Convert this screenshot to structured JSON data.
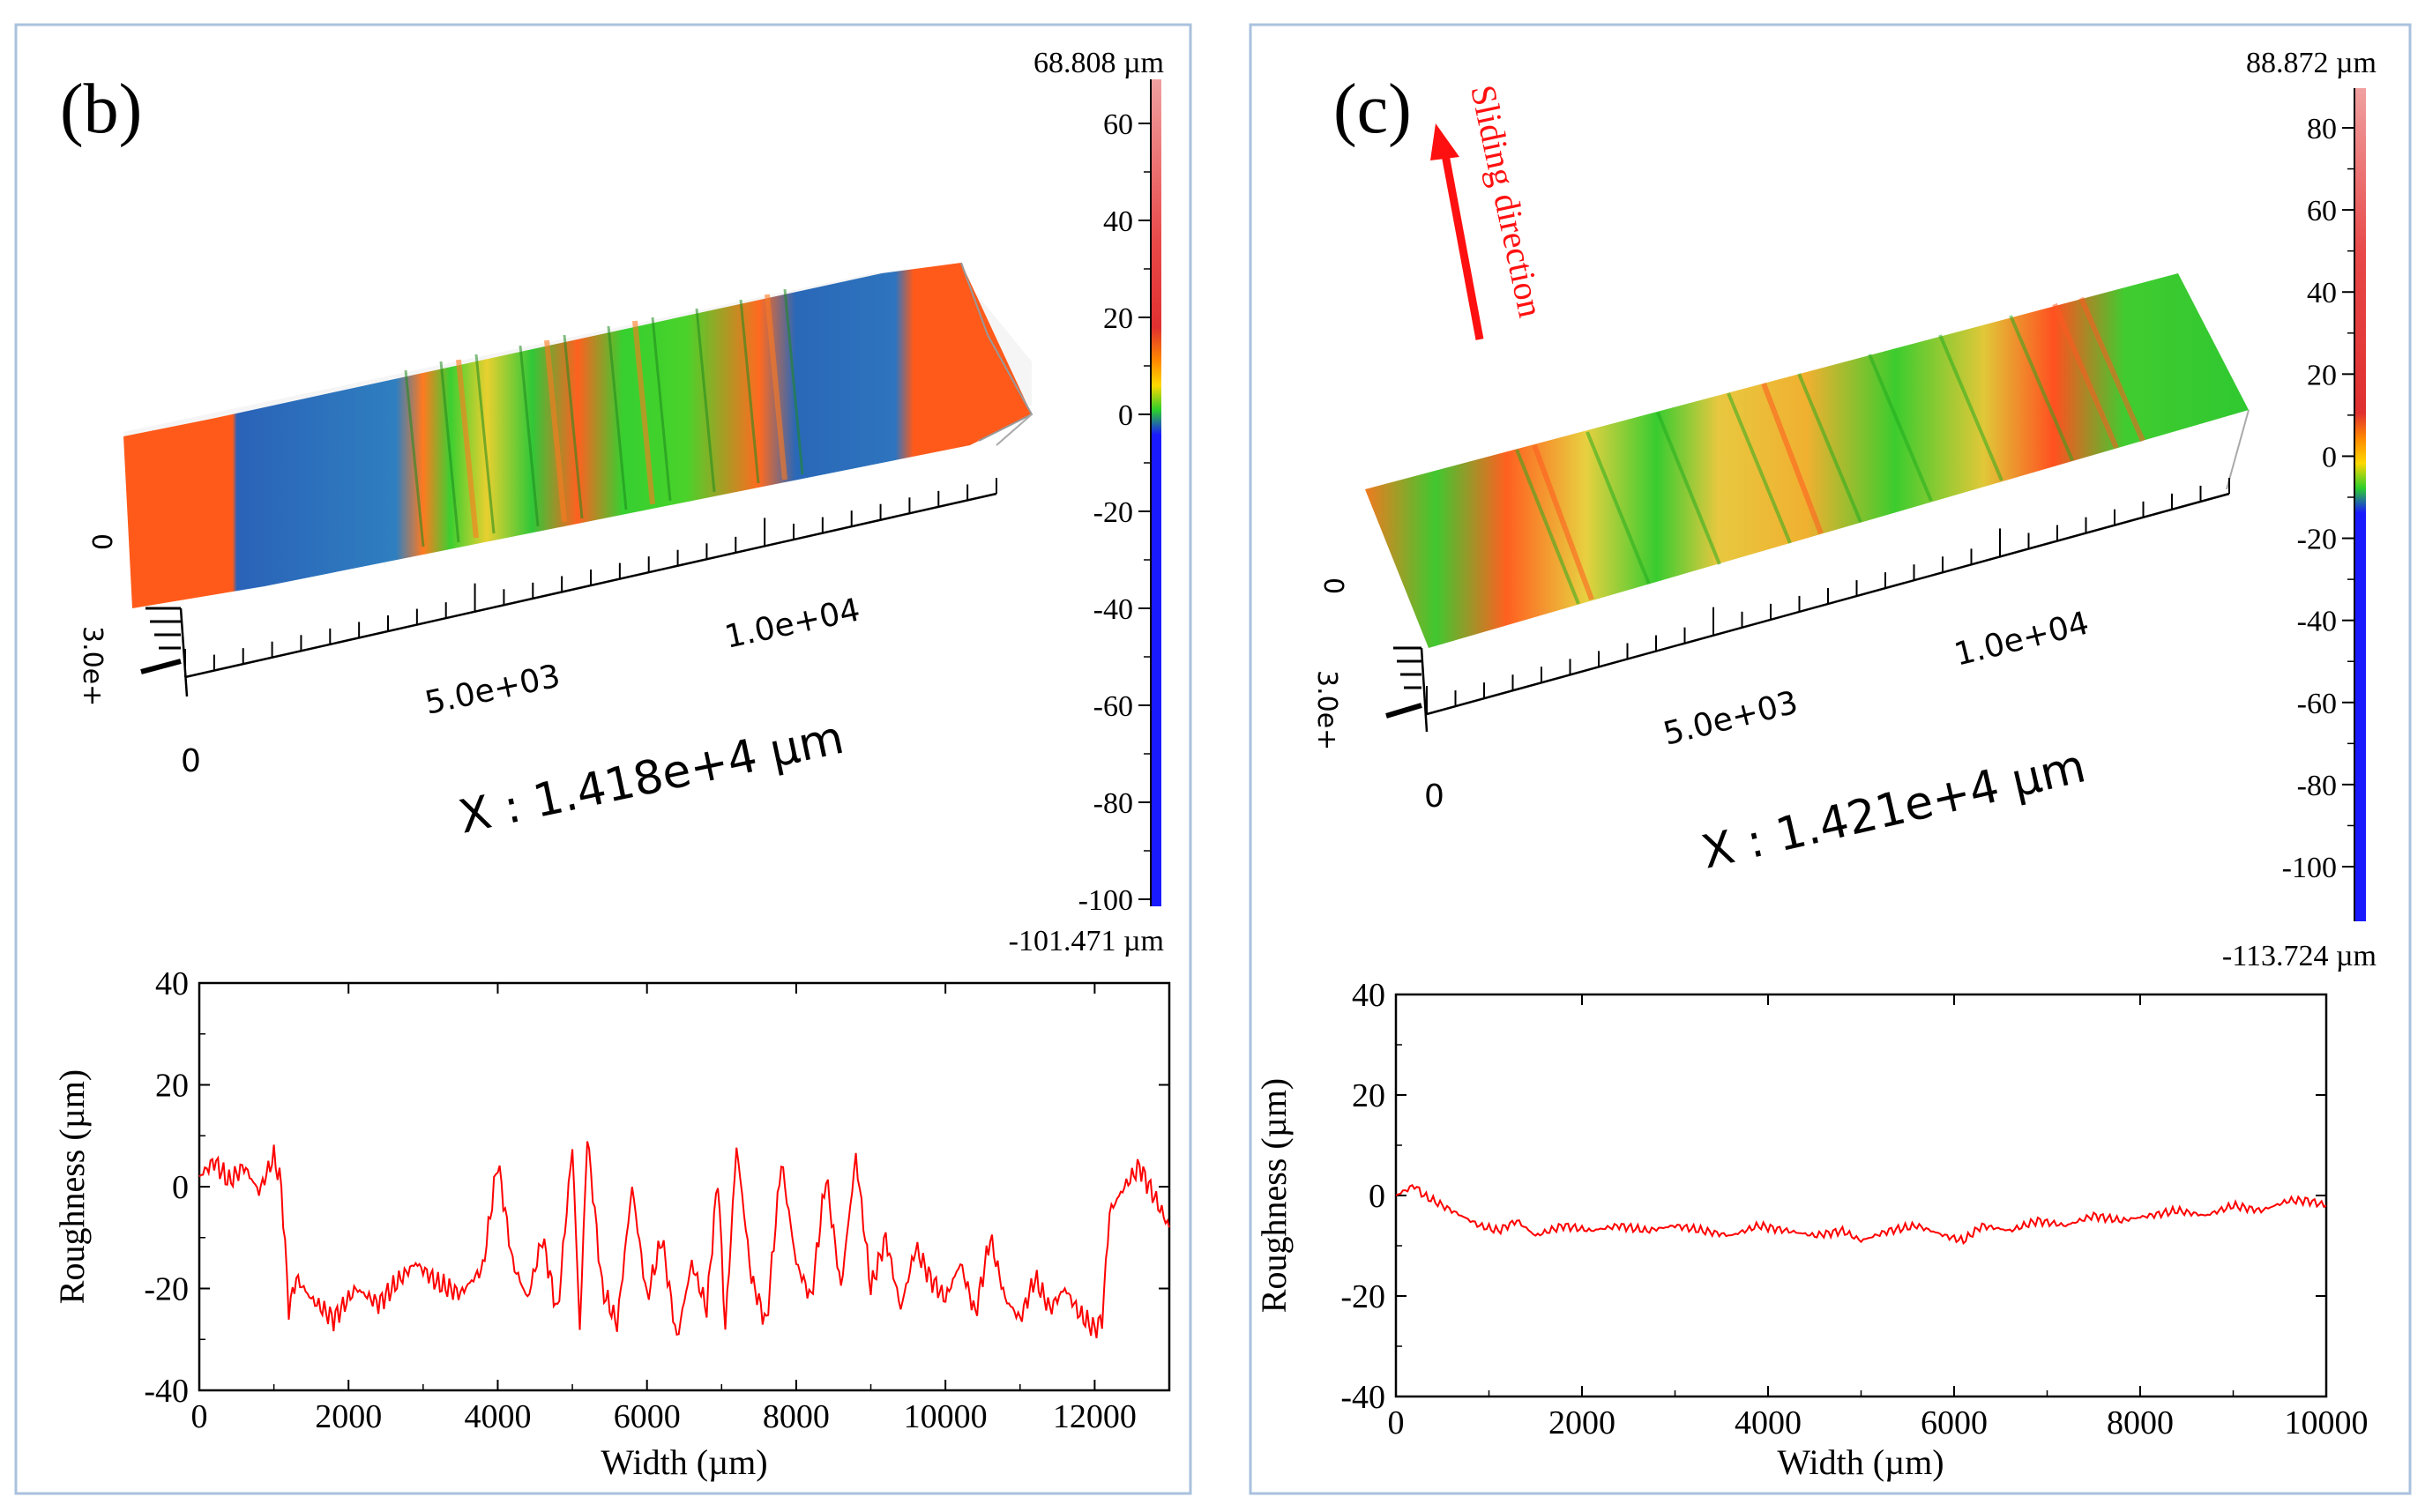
{
  "colors": {
    "frame": "#a9c1de",
    "profile_line": "#ff0000",
    "arrow": "#ff1010",
    "axis": "#000000",
    "surface_red": "#ff4a1a",
    "surface_green": "#2bd52b",
    "surface_blue": "#1f5fb8",
    "surface_yellow": "#f2d03a"
  },
  "panels": [
    {
      "label": "(b)",
      "view3d": {
        "colorbar_max_label": "68.808 µm",
        "colorbar_min_label": "-101.471 µm",
        "colorbar_ticks": [
          "60",
          "40",
          "20",
          "0",
          "-20",
          "-40",
          "-60",
          "-80",
          "-100"
        ],
        "x_axis_label": "X : 1.418e+4 µm",
        "x_tick_0": "0",
        "x_tick_mid": "5.0e+03",
        "x_tick_far": "1.0e+04",
        "y_tick_0": "0",
        "y_tick_3": "3.0e+"
      }
    },
    {
      "label": "(c)",
      "annotation": "Sliding direction",
      "view3d": {
        "colorbar_max_label": "88.872 µm",
        "colorbar_min_label": "-113.724 µm",
        "colorbar_ticks": [
          "80",
          "60",
          "40",
          "20",
          "0",
          "-20",
          "-40",
          "-60",
          "-80",
          "-100"
        ],
        "x_axis_label": "X : 1.421e+4 µm",
        "x_tick_0": "0",
        "x_tick_mid": "5.0e+03",
        "x_tick_far": "1.0e+04",
        "y_tick_0": "0",
        "y_tick_3": "3.0e+"
      }
    }
  ],
  "chart_data": [
    {
      "type": "line",
      "panel": "(b)",
      "title": "",
      "xlabel": "Width (µm)",
      "ylabel": "Roughness (µm)",
      "xlim": [
        0,
        13000
      ],
      "ylim": [
        -40,
        40
      ],
      "xticks": [
        "0",
        "2000",
        "4000",
        "6000",
        "8000",
        "10000",
        "12000"
      ],
      "yticks": [
        "40",
        "20",
        "0",
        "-20",
        "-40"
      ],
      "series": [
        {
          "name": "profile (b)",
          "x": [
            0,
            200,
            400,
            600,
            800,
            1000,
            1100,
            1200,
            1300,
            1500,
            1800,
            2100,
            2400,
            2700,
            2900,
            3200,
            3500,
            3800,
            4000,
            4200,
            4400,
            4600,
            4800,
            5000,
            5100,
            5200,
            5400,
            5600,
            5800,
            6000,
            6200,
            6400,
            6600,
            6800,
            6950,
            7050,
            7200,
            7400,
            7600,
            7800,
            8000,
            8200,
            8400,
            8600,
            8800,
            9000,
            9200,
            9400,
            9600,
            9800,
            10000,
            10200,
            10400,
            10600,
            10800,
            11000,
            11200,
            11400,
            11600,
            11800,
            12000,
            12100,
            12200,
            12400,
            12600,
            12800,
            13000
          ],
          "values": [
            2,
            5,
            1,
            4,
            -1,
            6,
            0,
            -24,
            -18,
            -22,
            -26,
            -20,
            -23,
            -18,
            -15,
            -19,
            -21,
            -16,
            5,
            -15,
            -22,
            -10,
            -25,
            8,
            -28,
            10,
            -20,
            -27,
            0,
            -22,
            -10,
            -30,
            -15,
            -24,
            2,
            -28,
            8,
            -18,
            -27,
            5,
            -15,
            -22,
            2,
            -20,
            6,
            -20,
            -10,
            -24,
            -12,
            -18,
            -22,
            -15,
            -25,
            -10,
            -22,
            -26,
            -18,
            -24,
            -20,
            -25,
            -28,
            -26,
            -5,
            0,
            4,
            -2,
            -8
          ]
        }
      ]
    },
    {
      "type": "line",
      "panel": "(c)",
      "title": "",
      "xlabel": "Width (µm)",
      "ylabel": "Roughness (µm)",
      "xlim": [
        0,
        10000
      ],
      "ylim": [
        -40,
        40
      ],
      "xticks": [
        "0",
        "2000",
        "4000",
        "6000",
        "8000",
        "10000"
      ],
      "yticks": [
        "40",
        "20",
        "0",
        "-20",
        "-40"
      ],
      "series": [
        {
          "name": "profile (c)",
          "x": [
            0,
            100,
            200,
            300,
            500,
            700,
            900,
            1100,
            1300,
            1500,
            1800,
            2100,
            2400,
            2700,
            3000,
            3300,
            3600,
            3900,
            4200,
            4500,
            4800,
            5000,
            5300,
            5600,
            5900,
            6100,
            6300,
            6600,
            6900,
            7200,
            7500,
            7800,
            8100,
            8400,
            8700,
            9000,
            9300,
            9600,
            9800,
            10000
          ],
          "values": [
            0,
            1,
            2,
            0,
            -2,
            -4,
            -6,
            -7,
            -5,
            -8,
            -6,
            -7,
            -6,
            -7,
            -6,
            -7,
            -8,
            -6,
            -7,
            -8,
            -7,
            -9,
            -7,
            -6,
            -8,
            -9,
            -6,
            -7,
            -5,
            -6,
            -4,
            -5,
            -4,
            -3,
            -4,
            -2,
            -3,
            -1,
            -1,
            -2
          ]
        }
      ]
    }
  ]
}
